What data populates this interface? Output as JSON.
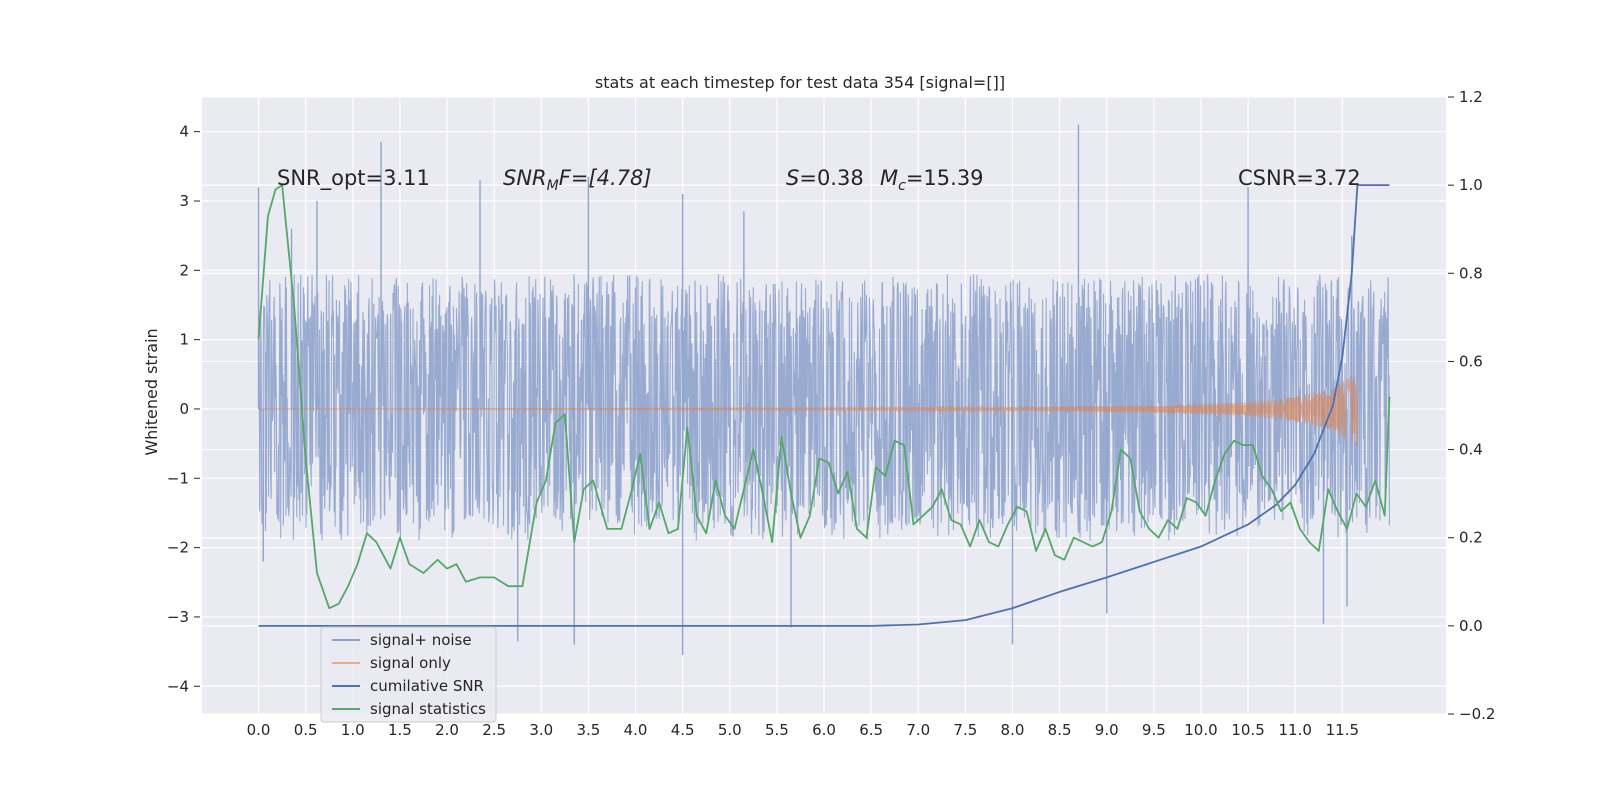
{
  "chart_data": {
    "type": "line",
    "title": "stats at each timestep for test data 354 [signal=[]]",
    "ylabel": "Whitened strain",
    "xlim": [
      -0.6,
      12.6
    ],
    "ylim": [
      -4.4,
      4.5
    ],
    "y2lim": [
      -0.2,
      1.2
    ],
    "grid": true,
    "xticks": [
      "0.0",
      "0.5",
      "1.0",
      "1.5",
      "2.0",
      "2.5",
      "3.0",
      "3.5",
      "4.0",
      "4.5",
      "5.0",
      "5.5",
      "6.0",
      "6.5",
      "7.0",
      "7.5",
      "8.0",
      "8.5",
      "9.0",
      "9.5",
      "10.0",
      "10.5",
      "11.0",
      "11.5"
    ],
    "yticks": [
      "−4",
      "−3",
      "−2",
      "−1",
      "0",
      "1",
      "2",
      "3",
      "4"
    ],
    "y2ticks": [
      "−0.2",
      "0.0",
      "0.2",
      "0.4",
      "0.6",
      "0.8",
      "1.0",
      "1.2"
    ],
    "legend_position": "lower-left",
    "annotations": {
      "snr_opt": "SNR_opt=3.11",
      "snr_mf_main": "SNR",
      "snr_mf_sub": "M",
      "snr_mf_rest": "F=[4.78]",
      "s_main": "S",
      "s_rest": "=0.38",
      "mc_main": "M",
      "mc_sub": "c",
      "mc_rest": "=15.39",
      "csnr": "CSNR=3.72"
    },
    "series": [
      {
        "name": "signal+ noise",
        "color": "#8fa3cc",
        "axis": "left",
        "x_range": [
          0.0,
          12.0
        ],
        "band": {
          "lower": -1.7,
          "upper": 1.95
        },
        "peaks": [
          [
            0.0,
            3.2
          ],
          [
            0.35,
            2.6
          ],
          [
            0.62,
            3.0
          ],
          [
            1.3,
            3.85
          ],
          [
            2.35,
            3.3
          ],
          [
            3.5,
            3.35
          ],
          [
            4.5,
            3.1
          ],
          [
            5.15,
            2.85
          ],
          [
            8.7,
            4.1
          ],
          [
            10.5,
            3.2
          ],
          [
            11.6,
            2.5
          ]
        ],
        "troughs": [
          [
            0.05,
            -2.2
          ],
          [
            2.75,
            -3.35
          ],
          [
            3.35,
            -3.4
          ],
          [
            4.5,
            -3.55
          ],
          [
            5.65,
            -3.15
          ],
          [
            8.0,
            -3.4
          ],
          [
            9.0,
            -2.95
          ],
          [
            11.3,
            -3.1
          ],
          [
            11.55,
            -2.85
          ]
        ]
      },
      {
        "name": "signal only",
        "color": "#dd8452",
        "axis": "left",
        "x_range": [
          0.0,
          11.66
        ],
        "envelope": [
          [
            0.0,
            0.0
          ],
          [
            8.0,
            0.02
          ],
          [
            9.5,
            0.05
          ],
          [
            10.5,
            0.1
          ],
          [
            11.0,
            0.18
          ],
          [
            11.4,
            0.3
          ],
          [
            11.62,
            0.5
          ],
          [
            11.66,
            0.58
          ]
        ]
      },
      {
        "name": "cumilative SNR",
        "color": "#4c72b0",
        "axis": "right",
        "x": [
          0.0,
          6.5,
          7.0,
          7.5,
          8.0,
          8.5,
          9.0,
          9.5,
          10.0,
          10.5,
          10.8,
          11.0,
          11.2,
          11.4,
          11.5,
          11.6,
          11.66,
          12.0
        ],
        "y": [
          0.0,
          0.0,
          0.003,
          0.013,
          0.04,
          0.077,
          0.11,
          0.145,
          0.18,
          0.23,
          0.275,
          0.32,
          0.39,
          0.5,
          0.61,
          0.8,
          1.0,
          1.0
        ]
      },
      {
        "name": "signal statistics",
        "color": "#55a868",
        "axis": "right",
        "x": [
          0.0,
          0.1,
          0.18,
          0.25,
          0.38,
          0.5,
          0.62,
          0.75,
          0.85,
          0.95,
          1.05,
          1.15,
          1.25,
          1.4,
          1.5,
          1.6,
          1.75,
          1.9,
          2.0,
          2.1,
          2.2,
          2.35,
          2.5,
          2.65,
          2.8,
          2.95,
          3.05,
          3.15,
          3.25,
          3.35,
          3.45,
          3.55,
          3.7,
          3.85,
          3.95,
          4.05,
          4.15,
          4.25,
          4.35,
          4.45,
          4.55,
          4.65,
          4.75,
          4.85,
          4.95,
          5.05,
          5.15,
          5.25,
          5.35,
          5.45,
          5.55,
          5.65,
          5.75,
          5.85,
          5.95,
          6.05,
          6.15,
          6.25,
          6.35,
          6.45,
          6.55,
          6.65,
          6.75,
          6.85,
          6.95,
          7.05,
          7.15,
          7.25,
          7.35,
          7.45,
          7.55,
          7.65,
          7.75,
          7.85,
          7.95,
          8.05,
          8.15,
          8.25,
          8.35,
          8.45,
          8.55,
          8.65,
          8.75,
          8.85,
          8.95,
          9.05,
          9.15,
          9.25,
          9.35,
          9.45,
          9.55,
          9.65,
          9.75,
          9.85,
          9.95,
          10.05,
          10.15,
          10.25,
          10.35,
          10.45,
          10.55,
          10.65,
          10.75,
          10.85,
          10.95,
          11.05,
          11.15,
          11.25,
          11.35,
          11.45,
          11.55,
          11.65,
          11.75,
          11.85,
          11.95,
          12.0
        ],
        "y": [
          0.65,
          0.93,
          0.99,
          1.0,
          0.72,
          0.38,
          0.12,
          0.04,
          0.05,
          0.09,
          0.14,
          0.21,
          0.19,
          0.13,
          0.2,
          0.14,
          0.12,
          0.15,
          0.13,
          0.14,
          0.1,
          0.11,
          0.11,
          0.09,
          0.09,
          0.28,
          0.33,
          0.46,
          0.48,
          0.19,
          0.31,
          0.33,
          0.22,
          0.22,
          0.3,
          0.39,
          0.22,
          0.28,
          0.21,
          0.22,
          0.45,
          0.25,
          0.21,
          0.33,
          0.25,
          0.22,
          0.31,
          0.4,
          0.3,
          0.19,
          0.43,
          0.3,
          0.2,
          0.25,
          0.38,
          0.37,
          0.3,
          0.35,
          0.22,
          0.2,
          0.36,
          0.34,
          0.42,
          0.41,
          0.23,
          0.25,
          0.27,
          0.31,
          0.24,
          0.23,
          0.18,
          0.24,
          0.19,
          0.18,
          0.23,
          0.27,
          0.26,
          0.17,
          0.22,
          0.16,
          0.15,
          0.2,
          0.19,
          0.18,
          0.19,
          0.26,
          0.4,
          0.38,
          0.26,
          0.22,
          0.2,
          0.24,
          0.22,
          0.29,
          0.28,
          0.25,
          0.33,
          0.39,
          0.42,
          0.41,
          0.41,
          0.34,
          0.31,
          0.26,
          0.28,
          0.22,
          0.19,
          0.17,
          0.31,
          0.26,
          0.22,
          0.3,
          0.27,
          0.33,
          0.25,
          0.52
        ]
      }
    ]
  }
}
